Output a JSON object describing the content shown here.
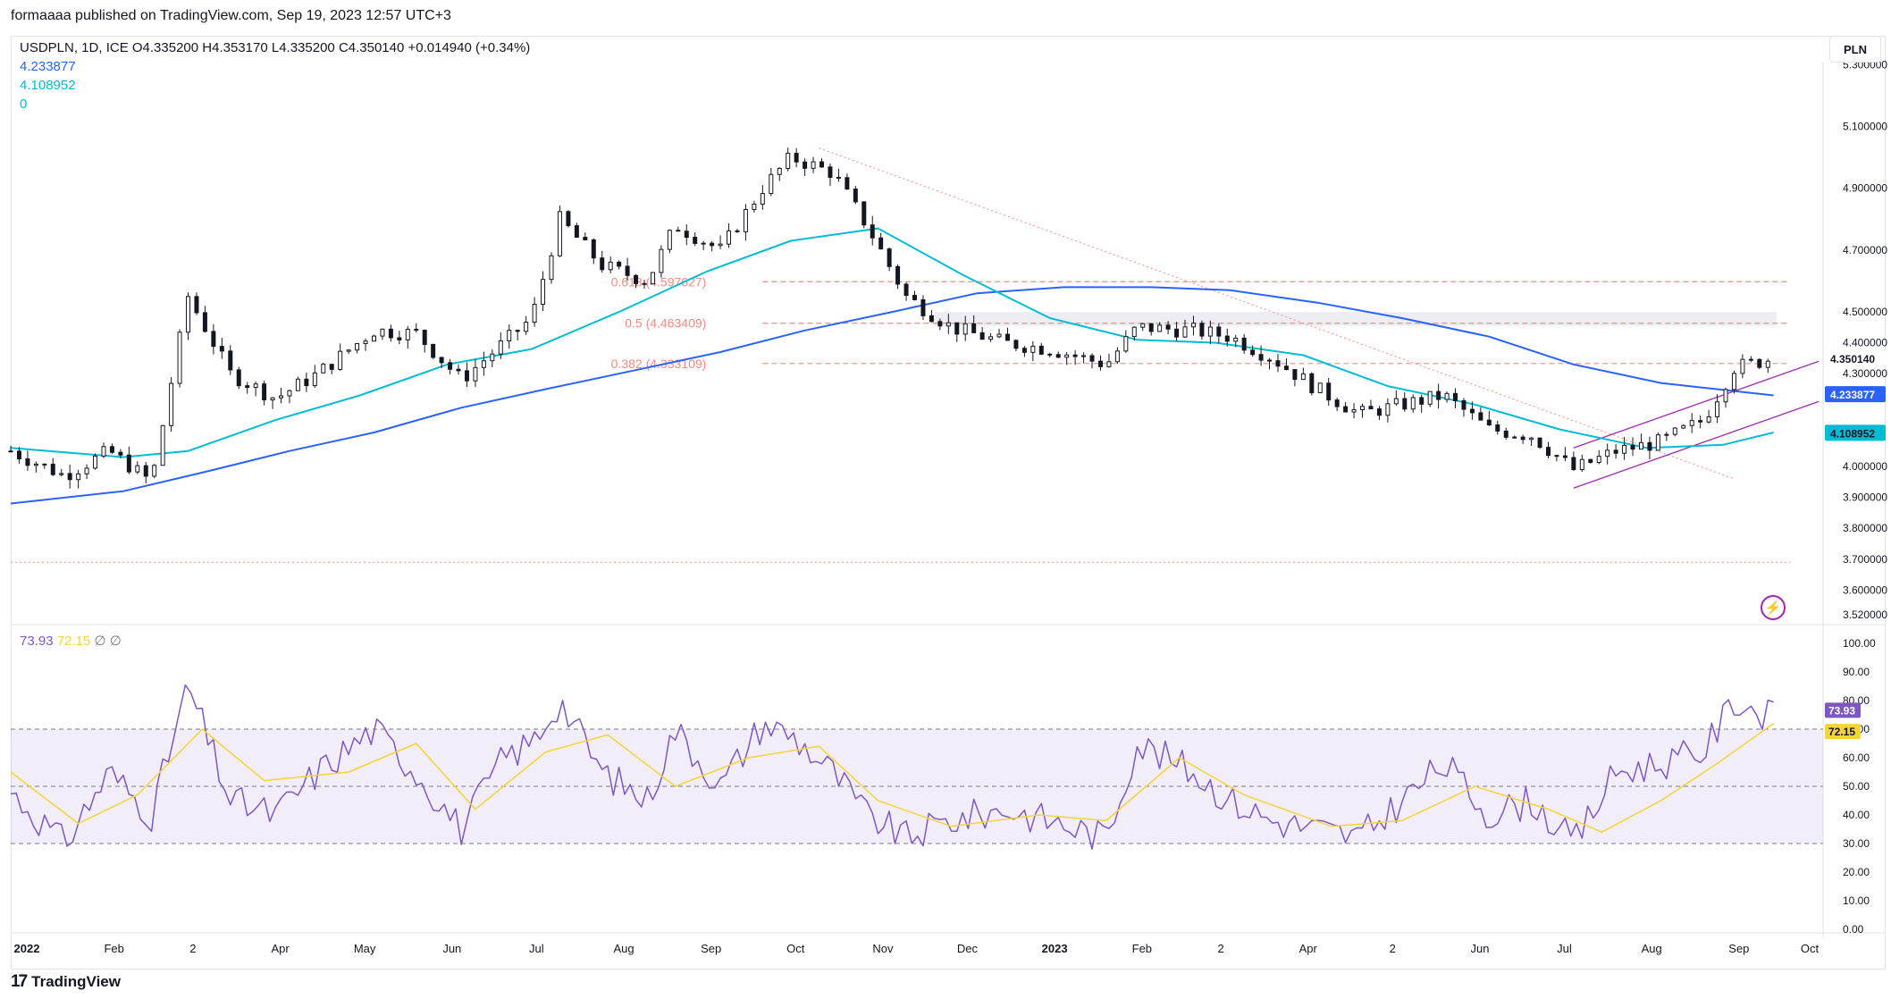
{
  "header": {
    "publish_line": "formaaaa published on TradingView.com, Sep 19, 2023 12:57 UTC+3"
  },
  "legend": {
    "symbol": "USDPLN, 1D, ICE",
    "open": "O4.335200",
    "high": "H4.353170",
    "low": "L4.335200",
    "close": "C4.350140",
    "change": "+0.014940 (+0.34%)",
    "ma_long_value": "4.233877",
    "ma_short_value": "4.108952",
    "third_value": "0",
    "rsi_value": "73.93",
    "rsi_ma_value": "72.15",
    "null_a": "∅",
    "null_b": "∅"
  },
  "currency_button": "PLN",
  "footer_brand": "TradingView",
  "colors": {
    "ma_long": "#2962ff",
    "ma_short": "#00bcd4",
    "rsi": "#7e57c2",
    "rsi_ma": "#f7d339",
    "fib": "#f28b82",
    "channel": "#9c27b0",
    "candle": "#131722"
  },
  "chart_data": [
    {
      "type": "candlestick",
      "symbol": "USDPLN",
      "x_ticks": [
        "2022",
        "Feb",
        "2",
        "Apr",
        "May",
        "Jun",
        "Jul",
        "Aug",
        "Sep",
        "Oct",
        "Nov",
        "Dec",
        "2023",
        "Feb",
        "2",
        "Apr",
        "2",
        "Jun",
        "Jul",
        "Aug",
        "Sep",
        "Oct"
      ],
      "y_ticks": [
        "5.300000",
        "5.100000",
        "4.900000",
        "4.700000",
        "4.500000",
        "4.400000",
        "4.300000",
        "4.000000",
        "3.900000",
        "3.800000",
        "3.700000",
        "3.600000",
        "3.520000"
      ],
      "ylim": [
        3.5,
        5.35
      ],
      "last_price_label": "4.350140",
      "ma_long_label": "4.233877",
      "ma_short_label": "4.108952",
      "price_path": [
        [
          "2022-01-01",
          4.05
        ],
        [
          "2022-01-20",
          3.97
        ],
        [
          "2022-02-05",
          4.05
        ],
        [
          "2022-02-20",
          3.95
        ],
        [
          "2022-03-05",
          4.55
        ],
        [
          "2022-03-20",
          4.3
        ],
        [
          "2022-04-05",
          4.22
        ],
        [
          "2022-04-20",
          4.3
        ],
        [
          "2022-05-10",
          4.44
        ],
        [
          "2022-05-25",
          4.43
        ],
        [
          "2022-06-10",
          4.28
        ],
        [
          "2022-06-25",
          4.4
        ],
        [
          "2022-07-05",
          4.48
        ],
        [
          "2022-07-15",
          4.8
        ],
        [
          "2022-07-30",
          4.65
        ],
        [
          "2022-08-15",
          4.6
        ],
        [
          "2022-08-25",
          4.78
        ],
        [
          "2022-09-10",
          4.7
        ],
        [
          "2022-09-25",
          4.9
        ],
        [
          "2022-10-05",
          5.0
        ],
        [
          "2022-10-20",
          4.95
        ],
        [
          "2022-11-01",
          4.78
        ],
        [
          "2022-11-15",
          4.55
        ],
        [
          "2022-12-01",
          4.45
        ],
        [
          "2022-12-20",
          4.4
        ],
        [
          "2023-01-05",
          4.38
        ],
        [
          "2023-01-25",
          4.33
        ],
        [
          "2023-02-05",
          4.45
        ],
        [
          "2023-02-25",
          4.44
        ],
        [
          "2023-03-10",
          4.42
        ],
        [
          "2023-03-25",
          4.35
        ],
        [
          "2023-04-10",
          4.25
        ],
        [
          "2023-04-25",
          4.17
        ],
        [
          "2023-05-10",
          4.2
        ],
        [
          "2023-05-25",
          4.23
        ],
        [
          "2023-06-10",
          4.12
        ],
        [
          "2023-06-25",
          4.1
        ],
        [
          "2023-07-10",
          3.99
        ],
        [
          "2023-07-25",
          4.05
        ],
        [
          "2023-08-10",
          4.08
        ],
        [
          "2023-08-25",
          4.15
        ],
        [
          "2023-09-05",
          4.32
        ],
        [
          "2023-09-19",
          4.35
        ]
      ],
      "ma_short": [
        [
          "2022-01-01",
          4.06
        ],
        [
          "2022-02-10",
          4.03
        ],
        [
          "2022-03-05",
          4.05
        ],
        [
          "2022-04-05",
          4.15
        ],
        [
          "2022-05-05",
          4.23
        ],
        [
          "2022-06-05",
          4.33
        ],
        [
          "2022-07-05",
          4.38
        ],
        [
          "2022-08-05",
          4.5
        ],
        [
          "2022-09-05",
          4.63
        ],
        [
          "2022-10-05",
          4.73
        ],
        [
          "2022-11-05",
          4.77
        ],
        [
          "2022-12-05",
          4.62
        ],
        [
          "2023-01-05",
          4.48
        ],
        [
          "2023-02-05",
          4.41
        ],
        [
          "2023-03-05",
          4.4
        ],
        [
          "2023-04-05",
          4.36
        ],
        [
          "2023-05-05",
          4.26
        ],
        [
          "2023-06-05",
          4.2
        ],
        [
          "2023-07-05",
          4.12
        ],
        [
          "2023-08-05",
          4.06
        ],
        [
          "2023-09-01",
          4.07
        ],
        [
          "2023-09-19",
          4.11
        ]
      ],
      "ma_long": [
        [
          "2022-01-01",
          3.88
        ],
        [
          "2022-02-10",
          3.92
        ],
        [
          "2022-03-10",
          3.98
        ],
        [
          "2022-04-10",
          4.05
        ],
        [
          "2022-05-10",
          4.11
        ],
        [
          "2022-06-10",
          4.19
        ],
        [
          "2022-07-10",
          4.25
        ],
        [
          "2022-08-10",
          4.31
        ],
        [
          "2022-09-10",
          4.37
        ],
        [
          "2022-10-10",
          4.44
        ],
        [
          "2022-11-10",
          4.5
        ],
        [
          "2022-12-10",
          4.56
        ],
        [
          "2023-01-10",
          4.58
        ],
        [
          "2023-02-10",
          4.58
        ],
        [
          "2023-03-10",
          4.57
        ],
        [
          "2023-04-10",
          4.53
        ],
        [
          "2023-05-10",
          4.48
        ],
        [
          "2023-06-10",
          4.42
        ],
        [
          "2023-07-10",
          4.33
        ],
        [
          "2023-08-10",
          4.27
        ],
        [
          "2023-09-19",
          4.23
        ]
      ],
      "fib_levels": [
        {
          "label": "0.618 (4.597627)",
          "value": 4.597627
        },
        {
          "label": "0.5 (4.463409)",
          "value": 4.463409
        },
        {
          "label": "0.382 (4.333109)",
          "value": 4.333109
        }
      ],
      "horizontal_dotted_level": 3.69,
      "resistance_zone": [
        4.455,
        4.5
      ]
    },
    {
      "type": "line",
      "name": "RSI",
      "y_ticks": [
        "100.00",
        "90.00",
        "80.00",
        "70.00",
        "60.00",
        "50.00",
        "40.00",
        "30.00",
        "20.00",
        "10.00",
        "0.00"
      ],
      "ylim": [
        0,
        100
      ],
      "bands": [
        70,
        50,
        30
      ],
      "rsi_label": "73.93",
      "rsi_ma_label": "72.15",
      "rsi": [
        [
          "2022-01-01",
          48
        ],
        [
          "2022-01-20",
          30
        ],
        [
          "2022-02-05",
          55
        ],
        [
          "2022-02-20",
          40
        ],
        [
          "2022-03-05",
          85
        ],
        [
          "2022-03-20",
          45
        ],
        [
          "2022-04-05",
          40
        ],
        [
          "2022-04-20",
          55
        ],
        [
          "2022-05-10",
          70
        ],
        [
          "2022-05-25",
          55
        ],
        [
          "2022-06-10",
          35
        ],
        [
          "2022-06-25",
          60
        ],
        [
          "2022-07-05",
          65
        ],
        [
          "2022-07-15",
          80
        ],
        [
          "2022-07-30",
          55
        ],
        [
          "2022-08-15",
          45
        ],
        [
          "2022-08-25",
          70
        ],
        [
          "2022-09-10",
          50
        ],
        [
          "2022-09-25",
          72
        ],
        [
          "2022-10-05",
          68
        ],
        [
          "2022-10-20",
          55
        ],
        [
          "2022-11-01",
          40
        ],
        [
          "2022-11-15",
          32
        ],
        [
          "2022-12-01",
          38
        ],
        [
          "2022-12-20",
          42
        ],
        [
          "2023-01-05",
          38
        ],
        [
          "2023-01-25",
          32
        ],
        [
          "2023-02-05",
          65
        ],
        [
          "2023-02-25",
          55
        ],
        [
          "2023-03-10",
          45
        ],
        [
          "2023-03-25",
          38
        ],
        [
          "2023-04-10",
          35
        ],
        [
          "2023-04-25",
          32
        ],
        [
          "2023-05-10",
          45
        ],
        [
          "2023-05-25",
          58
        ],
        [
          "2023-06-10",
          40
        ],
        [
          "2023-06-25",
          45
        ],
        [
          "2023-07-10",
          30
        ],
        [
          "2023-07-25",
          55
        ],
        [
          "2023-08-10",
          58
        ],
        [
          "2023-08-25",
          62
        ],
        [
          "2023-09-05",
          80
        ],
        [
          "2023-09-19",
          74
        ]
      ],
      "rsi_ma": [
        [
          "2022-01-01",
          55
        ],
        [
          "2022-01-25",
          37
        ],
        [
          "2022-02-15",
          47
        ],
        [
          "2022-03-10",
          70
        ],
        [
          "2022-04-01",
          52
        ],
        [
          "2022-05-01",
          55
        ],
        [
          "2022-05-25",
          65
        ],
        [
          "2022-06-15",
          42
        ],
        [
          "2022-07-10",
          62
        ],
        [
          "2022-08-01",
          68
        ],
        [
          "2022-08-25",
          50
        ],
        [
          "2022-09-20",
          60
        ],
        [
          "2022-10-15",
          64
        ],
        [
          "2022-11-05",
          45
        ],
        [
          "2022-12-01",
          36
        ],
        [
          "2023-01-01",
          40
        ],
        [
          "2023-01-25",
          38
        ],
        [
          "2023-02-20",
          60
        ],
        [
          "2023-03-15",
          47
        ],
        [
          "2023-04-15",
          36
        ],
        [
          "2023-05-10",
          38
        ],
        [
          "2023-06-05",
          50
        ],
        [
          "2023-07-01",
          42
        ],
        [
          "2023-07-20",
          34
        ],
        [
          "2023-08-10",
          45
        ],
        [
          "2023-08-30",
          58
        ],
        [
          "2023-09-19",
          72
        ]
      ]
    }
  ]
}
